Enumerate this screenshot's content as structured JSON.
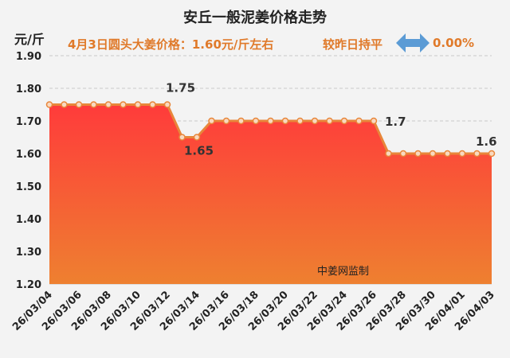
{
  "header": {
    "title": "安丘一般泥姜价格走势",
    "unit": "元/斤",
    "subtitle": "4月3日圆头大姜价格：1.60元/斤左右",
    "comparison": "较昨日持平",
    "change": "0.00%",
    "arrow_icon": "double-arrow-icon"
  },
  "watermark": "中姜网监制",
  "chart_data": {
    "type": "area",
    "ylim": [
      1.2,
      1.9
    ],
    "yticks": [
      "1.20",
      "1.30",
      "1.40",
      "1.50",
      "1.60",
      "1.70",
      "1.80",
      "1.90"
    ],
    "x_tick_labels": [
      "26/03/04",
      "26/03/06",
      "26/03/08",
      "26/03/10",
      "26/03/12",
      "26/03/14",
      "26/03/16",
      "26/03/18",
      "26/03/20",
      "26/03/22",
      "26/03/24",
      "26/03/26",
      "26/03/28",
      "26/03/30",
      "26/04/01",
      "26/04/03"
    ],
    "dates": [
      "03/04",
      "03/05",
      "03/06",
      "03/07",
      "03/08",
      "03/09",
      "03/10",
      "03/11",
      "03/12",
      "03/13",
      "03/14",
      "03/15",
      "03/16",
      "03/17",
      "03/18",
      "03/19",
      "03/20",
      "03/21",
      "03/22",
      "03/23",
      "03/24",
      "03/25",
      "03/26",
      "03/27",
      "03/28",
      "03/29",
      "03/30",
      "03/31",
      "04/01",
      "04/02",
      "04/03"
    ],
    "values": [
      1.75,
      1.75,
      1.75,
      1.75,
      1.75,
      1.75,
      1.75,
      1.75,
      1.75,
      1.65,
      1.65,
      1.7,
      1.7,
      1.7,
      1.7,
      1.7,
      1.7,
      1.7,
      1.7,
      1.7,
      1.7,
      1.7,
      1.7,
      1.6,
      1.6,
      1.6,
      1.6,
      1.6,
      1.6,
      1.6,
      1.6
    ],
    "data_labels": [
      {
        "index": 8,
        "text": "1.75"
      },
      {
        "index": 10,
        "text": "1.65"
      },
      {
        "index": 22,
        "text": "1.7"
      },
      {
        "index": 30,
        "text": "1.6"
      }
    ],
    "grid": true,
    "colors": {
      "line": "#e8863a",
      "fill_top": "#ff3b3b",
      "fill_bottom": "#ee8030",
      "marker_fill": "#f9d9c0"
    }
  }
}
